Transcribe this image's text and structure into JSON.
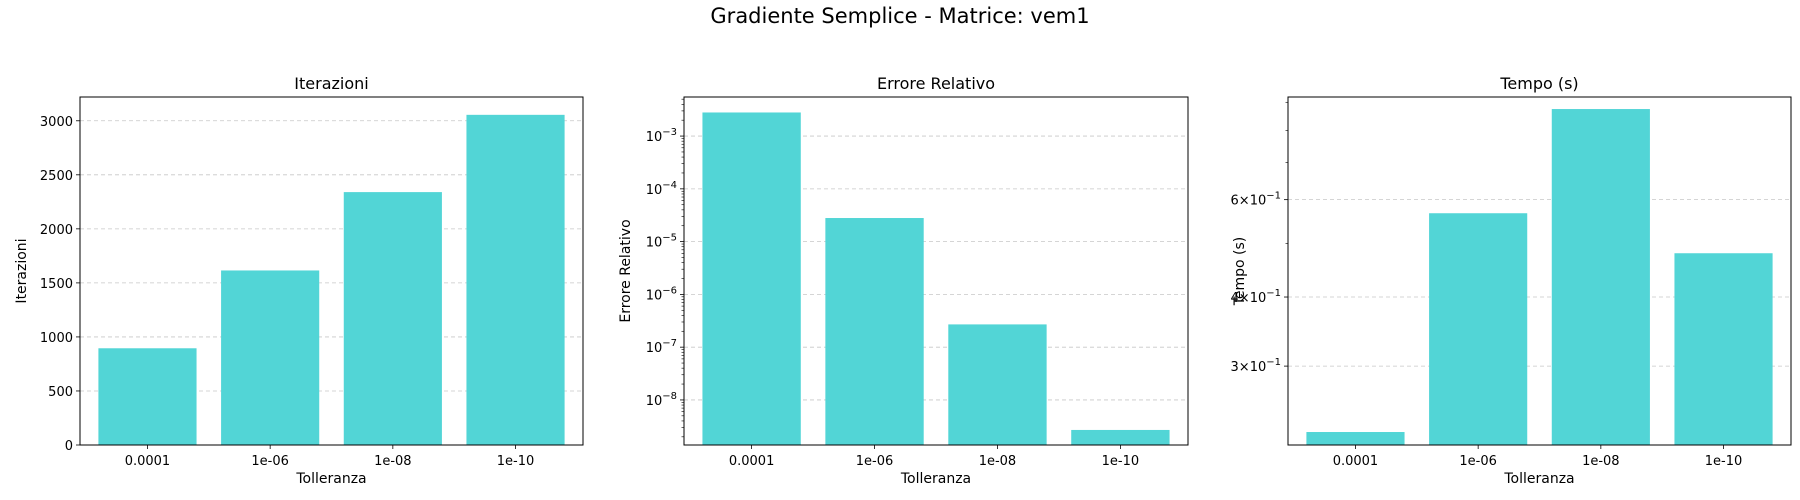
{
  "figure": {
    "suptitle": "Gradiente Semplice - Matrice: vem1"
  },
  "chart_data": [
    {
      "type": "bar",
      "title": "Iterazioni",
      "xlabel": "Tolleranza",
      "ylabel": "Iterazioni",
      "categories": [
        "0.0001",
        "1e-06",
        "1e-08",
        "1e-10"
      ],
      "values": [
        895,
        1615,
        2340,
        3055
      ],
      "ylim": [
        0,
        3220
      ],
      "yscale": "linear",
      "yticks": [
        0,
        500,
        1000,
        1500,
        2000,
        2500,
        3000
      ],
      "ytick_labels": [
        "0",
        "500",
        "1000",
        "1500",
        "2000",
        "2500",
        "3000"
      ],
      "grid": "y-dashed",
      "color": "#52d5d6"
    },
    {
      "type": "bar",
      "title": "Errore Relativo",
      "xlabel": "Tolleranza",
      "ylabel": "Errore Relativo",
      "categories": [
        "0.0001",
        "1e-06",
        "1e-08",
        "1e-10"
      ],
      "values": [
        0.0028,
        2.8e-05,
        2.7e-07,
        2.7e-09
      ],
      "ylim": [
        1.4e-09,
        0.0055
      ],
      "yscale": "log",
      "yticks": [
        1e-08,
        1e-07,
        1e-06,
        1e-05,
        0.0001,
        0.001
      ],
      "ytick_labels": [
        {
          "base": "10",
          "exp": "−8"
        },
        {
          "base": "10",
          "exp": "−7"
        },
        {
          "base": "10",
          "exp": "−6"
        },
        {
          "base": "10",
          "exp": "−5"
        },
        {
          "base": "10",
          "exp": "−4"
        },
        {
          "base": "10",
          "exp": "−3"
        }
      ],
      "grid": "y-dashed",
      "color": "#52d5d6"
    },
    {
      "type": "bar",
      "title": "Tempo (s)",
      "xlabel": "Tolleranza",
      "ylabel": "Tempo (s)",
      "categories": [
        "0.0001",
        "1e-06",
        "1e-08",
        "1e-10"
      ],
      "values": [
        0.228,
        0.567,
        0.875,
        0.48
      ],
      "ylim": [
        0.216,
        0.92
      ],
      "yscale": "log",
      "yticks": [
        0.3,
        0.4,
        0.6
      ],
      "ytick_labels": [
        {
          "mant": "3",
          "base": "10",
          "exp": "−1"
        },
        {
          "mant": "4",
          "base": "10",
          "exp": "−1"
        },
        {
          "mant": "6",
          "base": "10",
          "exp": "−1"
        }
      ],
      "minor_ticks": [
        0.5,
        0.7,
        0.8,
        0.9
      ],
      "grid": "y-dashed",
      "color": "#52d5d6"
    }
  ]
}
